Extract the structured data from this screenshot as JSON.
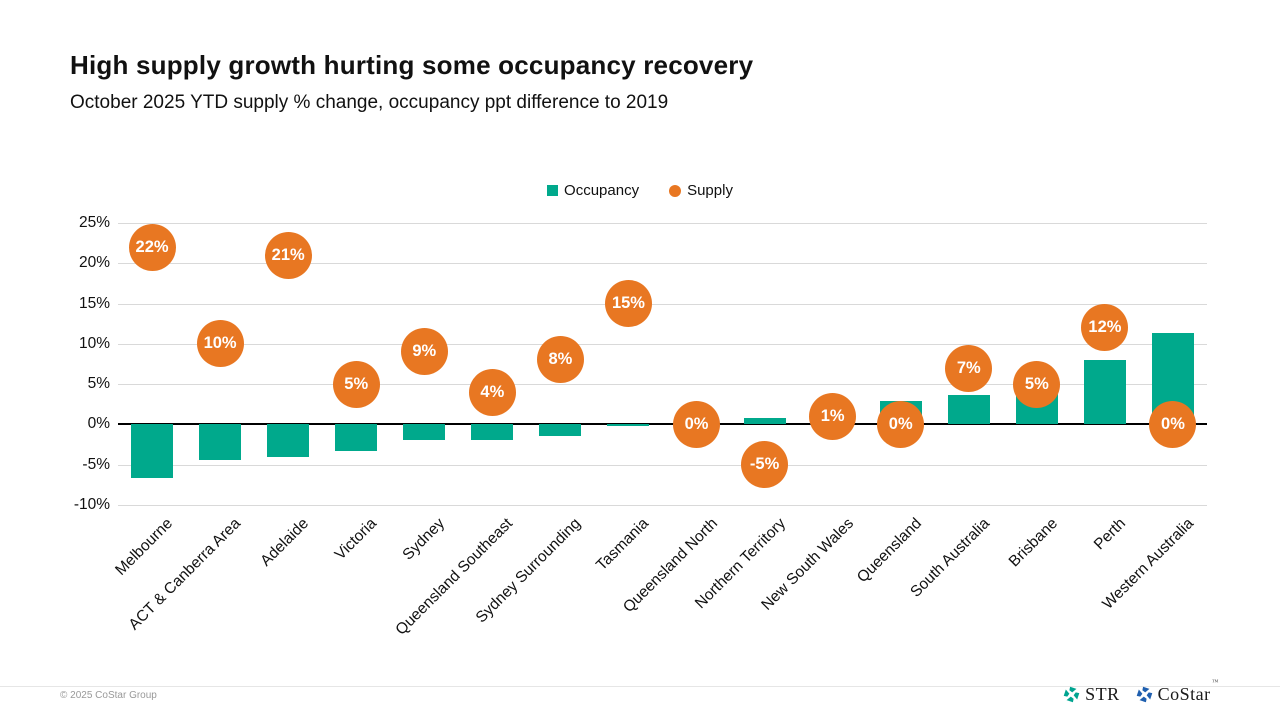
{
  "slide": {
    "title": "High supply growth hurting some occupancy recovery",
    "subtitle": "October 2025 YTD supply % change, occupancy ppt difference to 2019",
    "copyright": "© 2025 CoStar Group",
    "logos": {
      "str_label": "STR",
      "costar_label": "CoStar",
      "costar_tm": "™"
    }
  },
  "colors": {
    "occupancy_teal": "#00A98C",
    "supply_orange": "#E87722",
    "gridline_gray": "#D9D9D9",
    "zero_line_black": "#000000",
    "str_logo_teal": "#00A490",
    "costar_logo_blue": "#1F5FAF"
  },
  "chart_data": {
    "type": "bar",
    "title": "High supply growth hurting some occupancy recovery",
    "subtitle": "October 2025 YTD supply % change, occupancy ppt difference to 2019",
    "xlabel": "",
    "ylabel": "",
    "ylim": [
      -10,
      25
    ],
    "yticks": [
      25,
      20,
      15,
      10,
      5,
      0,
      -5,
      -10
    ],
    "ytick_labels": [
      "25%",
      "20%",
      "15%",
      "10%",
      "5%",
      "0%",
      "-5%",
      "-10%"
    ],
    "grid": true,
    "legend_position": "top-center",
    "categories": [
      "Melbourne",
      "ACT & Canberra Area",
      "Adelaide",
      "Victoria",
      "Sydney",
      "Queensland Southeast",
      "Sydney Surrounding",
      "Tasmania",
      "Queensland North",
      "Northern Territory",
      "New South Wales",
      "Queensland",
      "South Australia",
      "Brisbane",
      "Perth",
      "Western Australia"
    ],
    "series": [
      {
        "name": "Occupancy",
        "render": "bar",
        "color": "#00A98C",
        "values": [
          -6.6,
          -4.4,
          -4.1,
          -3.3,
          -1.9,
          -1.9,
          -1.4,
          -0.2,
          0,
          0.8,
          1.9,
          2.9,
          3.6,
          3.9,
          8.0,
          11.3
        ]
      },
      {
        "name": "Supply",
        "render": "labeled-point",
        "color": "#E87722",
        "values": [
          22,
          10,
          21,
          5,
          9,
          4,
          8,
          15,
          0,
          -5,
          1,
          0,
          7,
          5,
          12,
          0
        ],
        "labels": [
          "22%",
          "10%",
          "21%",
          "5%",
          "9%",
          "4%",
          "8%",
          "15%",
          "0%",
          "-5%",
          "1%",
          "0%",
          "7%",
          "5%",
          "12%",
          "0%"
        ]
      }
    ]
  }
}
